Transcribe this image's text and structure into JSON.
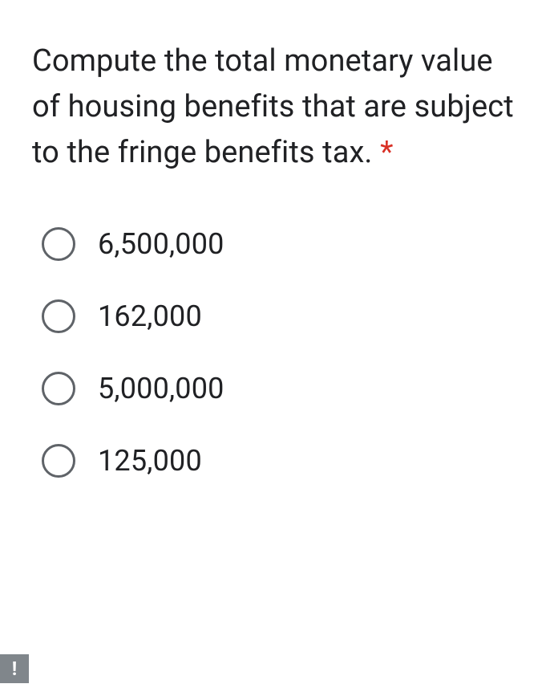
{
  "question": {
    "text": "Compute the total monetary value of housing benefits that are subject to the fringe benefits tax. ",
    "required_marker": "*",
    "required_color": "#d93025",
    "text_color": "#202124",
    "font_size": 38
  },
  "options": [
    {
      "label": "6,500,000",
      "selected": false
    },
    {
      "label": "162,000",
      "selected": false
    },
    {
      "label": "5,000,000",
      "selected": false
    },
    {
      "label": "125,000",
      "selected": false
    }
  ],
  "styling": {
    "background_color": "#ffffff",
    "radio_border_color": "#5f6368",
    "option_text_color": "#202124",
    "option_font_size": 36,
    "alert_badge_bg": "#80868b",
    "alert_badge_fg": "#ffffff"
  },
  "alert": {
    "symbol": "!"
  }
}
